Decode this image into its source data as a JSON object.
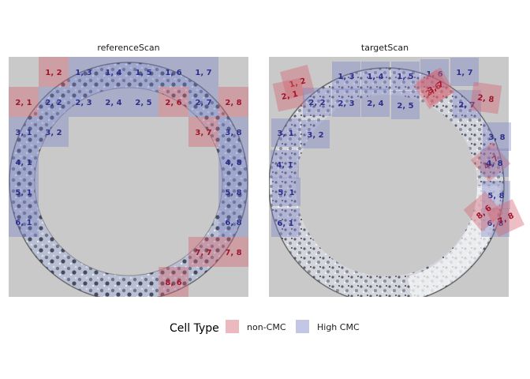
{
  "chart_data": {
    "type": "cell-comparison",
    "colors": {
      "non_cmc_fill": "#d5636f",
      "high_cmc_fill": "#7a80c4",
      "non_cmc_text": "#a0142a",
      "high_cmc_text": "#2d2f8c",
      "panel_bg": "#c9c9c9"
    },
    "legend": {
      "title": "Cell Type",
      "placement": "bottom",
      "entries": [
        {
          "label": "non-CMC",
          "type": "non"
        },
        {
          "label": "High CMC",
          "type": "high"
        }
      ]
    },
    "panels": [
      {
        "title": "referenceScan",
        "cells": [
          {
            "label": "1, 2",
            "row": 1,
            "col": 2,
            "type": "non"
          },
          {
            "label": "1, 3",
            "row": 1,
            "col": 3,
            "type": "high"
          },
          {
            "label": "1, 4",
            "row": 1,
            "col": 4,
            "type": "high"
          },
          {
            "label": "1, 5",
            "row": 1,
            "col": 5,
            "type": "high"
          },
          {
            "label": "1, 6",
            "row": 1,
            "col": 6,
            "type": "high"
          },
          {
            "label": "1, 7",
            "row": 1,
            "col": 7,
            "type": "high"
          },
          {
            "label": "2, 1",
            "row": 2,
            "col": 1,
            "type": "non"
          },
          {
            "label": "2, 2",
            "row": 2,
            "col": 2,
            "type": "high"
          },
          {
            "label": "2, 3",
            "row": 2,
            "col": 3,
            "type": "high"
          },
          {
            "label": "2, 4",
            "row": 2,
            "col": 4,
            "type": "high"
          },
          {
            "label": "2, 5",
            "row": 2,
            "col": 5,
            "type": "high"
          },
          {
            "label": "2, 6",
            "row": 2,
            "col": 6,
            "type": "non"
          },
          {
            "label": "2, 7",
            "row": 2,
            "col": 7,
            "type": "high"
          },
          {
            "label": "2, 8",
            "row": 2,
            "col": 8,
            "type": "non"
          },
          {
            "label": "3, 1",
            "row": 3,
            "col": 1,
            "type": "high"
          },
          {
            "label": "3, 2",
            "row": 3,
            "col": 2,
            "type": "high"
          },
          {
            "label": "3, 7",
            "row": 3,
            "col": 7,
            "type": "non"
          },
          {
            "label": "3, 8",
            "row": 3,
            "col": 8,
            "type": "high"
          },
          {
            "label": "4, 1",
            "row": 4,
            "col": 1,
            "type": "high"
          },
          {
            "label": "4, 8",
            "row": 4,
            "col": 8,
            "type": "high"
          },
          {
            "label": "5, 1",
            "row": 5,
            "col": 1,
            "type": "high"
          },
          {
            "label": "5, 8",
            "row": 5,
            "col": 8,
            "type": "high"
          },
          {
            "label": "6, 1",
            "row": 6,
            "col": 1,
            "type": "high"
          },
          {
            "label": "6, 8",
            "row": 6,
            "col": 8,
            "type": "high"
          },
          {
            "label": "7, 7",
            "row": 7,
            "col": 7,
            "type": "non"
          },
          {
            "label": "7, 8",
            "row": 7,
            "col": 8,
            "type": "non"
          },
          {
            "label": "8, 6",
            "row": 8,
            "col": 6,
            "type": "non"
          }
        ]
      },
      {
        "title": "targetScan",
        "cells": [
          {
            "label": "1, 2",
            "type": "non",
            "rot": -15
          },
          {
            "label": "1, 3",
            "type": "high",
            "rot": 0
          },
          {
            "label": "1, 4",
            "type": "high",
            "rot": 0
          },
          {
            "label": "1, 5",
            "type": "high",
            "rot": 0
          },
          {
            "label": "1, 6",
            "type": "high",
            "rot": 0
          },
          {
            "label": "1, 7",
            "type": "high",
            "rot": 0
          },
          {
            "label": "2, 1",
            "type": "non",
            "rot": -12
          },
          {
            "label": "2, 2",
            "type": "high",
            "rot": 0
          },
          {
            "label": "2, 3",
            "type": "high",
            "rot": 0
          },
          {
            "label": "2, 4",
            "type": "high",
            "rot": 0
          },
          {
            "label": "2, 5",
            "type": "high",
            "rot": 0
          },
          {
            "label": "2, 6",
            "type": "non",
            "rot": -35
          },
          {
            "label": "2, 7",
            "type": "high",
            "rot": 0
          },
          {
            "label": "2, 8",
            "type": "non",
            "rot": 8
          },
          {
            "label": "3, 1",
            "type": "high",
            "rot": 0
          },
          {
            "label": "3, 2",
            "type": "high",
            "rot": 0
          },
          {
            "label": "3, 7",
            "type": "non",
            "rot": -30
          },
          {
            "label": "3, 8",
            "type": "high",
            "rot": 0
          },
          {
            "label": "4, 1",
            "type": "high",
            "rot": 0
          },
          {
            "label": "4, 7",
            "type": "non",
            "rot": -40
          },
          {
            "label": "4, 8",
            "type": "high",
            "rot": 0
          },
          {
            "label": "5, 1",
            "type": "high",
            "rot": 0
          },
          {
            "label": "5, 8",
            "type": "high",
            "rot": 0
          },
          {
            "label": "6, 1",
            "type": "high",
            "rot": 0
          },
          {
            "label": "6, 8",
            "type": "high",
            "rot": 0
          },
          {
            "label": "7, 8",
            "type": "non",
            "rot": -25
          },
          {
            "label": "8, 6",
            "type": "non",
            "rot": -40
          }
        ]
      }
    ]
  }
}
